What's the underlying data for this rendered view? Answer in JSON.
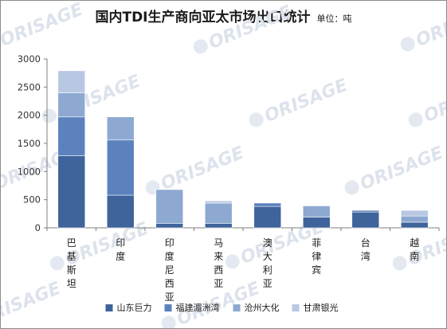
{
  "chart_data": {
    "type": "bar",
    "stacked": true,
    "title": "国内TDI生产商向亚太市场出口统计",
    "unit_label": "单位：吨",
    "categories": [
      "巴基斯坦",
      "印度",
      "印度尼西亚",
      "马来西亚",
      "澳大利亚",
      "菲律宾",
      "台湾",
      "越南"
    ],
    "series": [
      {
        "name": "山东巨力",
        "color": "#3f639b",
        "values": [
          1280,
          580,
          80,
          80,
          380,
          190,
          280,
          100
        ]
      },
      {
        "name": "福建湄洲湾",
        "color": "#5b82bd",
        "values": [
          690,
          980,
          0,
          0,
          60,
          0,
          30,
          0
        ]
      },
      {
        "name": "沧州大化",
        "color": "#8ea9d1",
        "values": [
          430,
          410,
          600,
          360,
          0,
          200,
          0,
          110
        ]
      },
      {
        "name": "甘肃银光",
        "color": "#b8c8e3",
        "values": [
          390,
          0,
          0,
          40,
          0,
          0,
          0,
          100
        ]
      }
    ],
    "y_ticks": [
      "0",
      "500",
      "1000",
      "1500",
      "2000",
      "2500",
      "3000"
    ],
    "ylim": [
      0,
      3000
    ],
    "grid": false,
    "legend_position": "bottom"
  },
  "watermark": {
    "text": "ORISAGE"
  }
}
